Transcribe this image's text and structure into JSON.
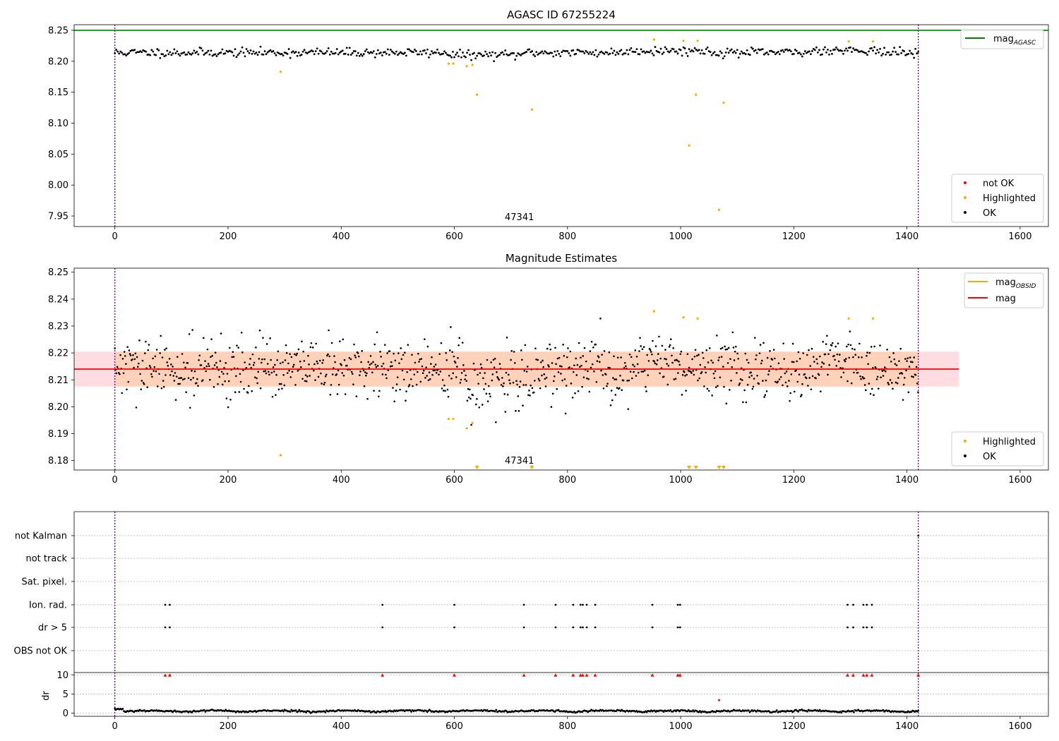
{
  "chart_data": [
    {
      "type": "scatter",
      "title": "AGASC ID 67255224",
      "xlim": [
        -72,
        1650
      ],
      "ylim": [
        7.933,
        8.259
      ],
      "xticks": [
        0,
        200,
        400,
        600,
        800,
        1000,
        1200,
        1400,
        1600
      ],
      "xtick_labels": [
        "0",
        "200",
        "400",
        "600",
        "800",
        "1000",
        "1200",
        "1400",
        "1600"
      ],
      "yticks": [
        7.95,
        8.0,
        8.05,
        8.1,
        8.15,
        8.2,
        8.25
      ],
      "ytick_labels": [
        "7.95",
        "8.00",
        "8.05",
        "8.10",
        "8.15",
        "8.20",
        "8.25"
      ],
      "obsid_label": "47341",
      "obsid_label_x": 710,
      "obs_boundaries": [
        0,
        1420
      ],
      "hlines": [
        {
          "name": "mag_AGASC",
          "y": 8.25,
          "color": "#008000"
        }
      ],
      "ok_series": {
        "x_start": 0,
        "x_end": 1420,
        "step": 2.5,
        "y_center": 8.214,
        "y_spread": 0.009
      },
      "highlighted": {
        "x": [
          293,
          590,
          598,
          622,
          632,
          640,
          737,
          953,
          1005,
          1015,
          1027,
          1030,
          1068,
          1076,
          1297,
          1340
        ],
        "y": [
          8.183,
          8.196,
          8.196,
          8.192,
          8.194,
          8.146,
          8.122,
          8.235,
          8.233,
          8.064,
          8.146,
          8.233,
          7.96,
          8.133,
          8.232,
          8.232
        ]
      },
      "legend": {
        "upper": {
          "position": "upper right",
          "entries": [
            {
              "label": "mag",
              "sub": "AGASC",
              "color": "#008000",
              "kind": "line"
            }
          ]
        },
        "lower": {
          "position": "lower right",
          "entries": [
            {
              "label": "not OK",
              "color": "#ff0000",
              "kind": "dot"
            },
            {
              "label": "Highlighted",
              "color": "#ffa500",
              "kind": "dot"
            },
            {
              "label": "OK",
              "color": "#000000",
              "kind": "dot"
            }
          ]
        }
      }
    },
    {
      "type": "scatter",
      "title": "Magnitude Estimates",
      "xlim": [
        -72,
        1650
      ],
      "ylim": [
        8.1765,
        8.2515
      ],
      "xticks": [
        0,
        200,
        400,
        600,
        800,
        1000,
        1200,
        1400,
        1600
      ],
      "xtick_labels": [
        "0",
        "200",
        "400",
        "600",
        "800",
        "1000",
        "1200",
        "1400",
        "1600"
      ],
      "yticks": [
        8.18,
        8.19,
        8.2,
        8.21,
        8.22,
        8.23,
        8.24,
        8.25
      ],
      "ytick_labels": [
        "8.18",
        "8.19",
        "8.20",
        "8.21",
        "8.22",
        "8.23",
        "8.24",
        "8.25"
      ],
      "obsid_label": "47341",
      "obsid_label_x": 710,
      "obs_boundaries": [
        0,
        1420
      ],
      "mag_line": {
        "y": 8.214,
        "color": "#ff0000",
        "x_start": -72,
        "x_end": 1492
      },
      "mag_band": {
        "y_low": 8.2075,
        "y_high": 8.2205,
        "color": "#ffc0cb",
        "x_start": -72,
        "x_end": 1492
      },
      "mag_obsid_band": {
        "y_low": 8.2075,
        "y_high": 8.2205,
        "color": "#ffa500",
        "x_start": 0,
        "x_end": 1420
      },
      "ok_series": {
        "x_start": 0,
        "x_end": 1420,
        "step": 1.4,
        "y_center": 8.214,
        "y_spread": 0.0075
      },
      "highlighted": {
        "x": [
          293,
          590,
          598,
          622,
          632,
          953,
          1005,
          1030,
          1297,
          1340
        ],
        "y": [
          8.182,
          8.1955,
          8.1955,
          8.192,
          8.194,
          8.2355,
          8.2332,
          8.2328,
          8.2328,
          8.2328
        ]
      },
      "offscale_markers_x": [
        640,
        737,
        1015,
        1027,
        1068,
        1076
      ],
      "legend": {
        "upper": {
          "position": "upper right",
          "entries": [
            {
              "label": "mag",
              "sub": "OBSID",
              "color": "#ffa500",
              "kind": "line"
            },
            {
              "label": "mag",
              "sub": "",
              "color": "#ff0000",
              "kind": "line"
            }
          ]
        },
        "lower": {
          "position": "lower right",
          "entries": [
            {
              "label": "Highlighted",
              "color": "#ffa500",
              "kind": "dot"
            },
            {
              "label": "OK",
              "color": "#000000",
              "kind": "dot"
            }
          ]
        }
      }
    },
    {
      "type": "scatter",
      "title": "",
      "xlim": [
        -72,
        1650
      ],
      "obs_boundaries": [
        0,
        1420
      ],
      "flag_labels": [
        "not Kalman",
        "not track",
        "Sat. pixel.",
        "Ion. rad.",
        "dr > 5",
        "OBS not OK"
      ],
      "flag_points": {
        "not Kalman": [
          1420
        ],
        "not track": [],
        "Sat. pixel.": [],
        "Ion. rad.": [
          89,
          97,
          473,
          600,
          723,
          779,
          810,
          823,
          827,
          834,
          849,
          950,
          995,
          999,
          1295,
          1305,
          1323,
          1329,
          1338
        ],
        "dr > 5": [
          89,
          97,
          473,
          600,
          723,
          779,
          810,
          823,
          827,
          834,
          849,
          950,
          995,
          999,
          1295,
          1305,
          1323,
          1329,
          1338
        ],
        "OBS not OK": []
      }
    },
    {
      "type": "scatter",
      "title": "",
      "xlim": [
        -72,
        1650
      ],
      "ylim": [
        -0.8,
        10.6
      ],
      "xticks": [
        0,
        200,
        400,
        600,
        800,
        1000,
        1200,
        1400,
        1600
      ],
      "xtick_labels": [
        "0",
        "200",
        "400",
        "600",
        "800",
        "1000",
        "1200",
        "1400",
        "1600"
      ],
      "yticks": [
        0,
        5,
        10
      ],
      "ytick_labels": [
        "0",
        "5",
        "10"
      ],
      "ylabel": "dr",
      "obs_boundaries": [
        0,
        1420
      ],
      "dr_series": {
        "x_start": 0,
        "x_end": 1420,
        "step": 2,
        "y_center": 0.5,
        "y_spread": 0.35
      },
      "red_clipped_x": [
        89,
        97,
        473,
        600,
        723,
        779,
        810,
        823,
        827,
        834,
        849,
        950,
        995,
        999,
        1295,
        1305,
        1323,
        1329,
        1338,
        1420
      ],
      "red_points": [
        {
          "x": 1068,
          "y": 3.4
        }
      ]
    }
  ]
}
